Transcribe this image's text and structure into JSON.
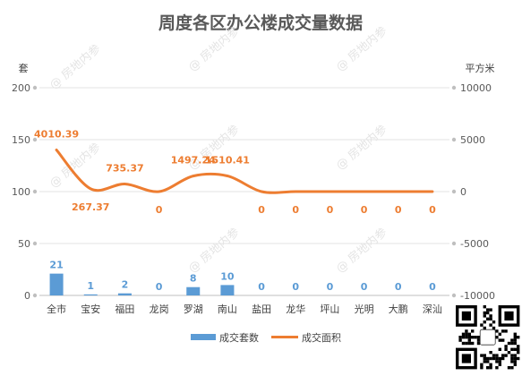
{
  "chart_data": {
    "type": "bar",
    "title": "周度各区办公楼成交量数据",
    "categories": [
      "全市",
      "宝安",
      "福田",
      "龙岗",
      "罗湖",
      "南山",
      "盐田",
      "龙华",
      "坪山",
      "光明",
      "大鹏",
      "深汕"
    ],
    "left_axis": {
      "unit": "套",
      "ylim": [
        0,
        200
      ],
      "ticks": [
        0,
        50,
        100,
        150,
        200
      ]
    },
    "right_axis": {
      "unit": "平方米",
      "ylim": [
        -10000,
        10000
      ],
      "ticks": [
        -10000,
        -5000,
        0,
        5000,
        10000
      ]
    },
    "series": [
      {
        "name": "成交套数",
        "type": "bar",
        "axis": "left",
        "color": "#5b9bd5",
        "values": [
          21,
          1,
          2,
          0,
          8,
          10,
          0,
          0,
          0,
          0,
          0,
          0
        ],
        "labels": [
          "21",
          "1",
          "2",
          "0",
          "8",
          "10",
          "0",
          "0",
          "0",
          "0",
          "0",
          "0"
        ]
      },
      {
        "name": "成交面积",
        "type": "line",
        "axis": "right",
        "color": "#ed7d31",
        "values": [
          4010.39,
          267.37,
          735.37,
          0,
          1497.24,
          1510.41,
          0,
          0,
          0,
          0,
          0,
          0
        ],
        "labels": [
          "4010.39",
          "267.37",
          "735.37",
          "0",
          "1497.24",
          "1510.41",
          "0",
          "0",
          "0",
          "0",
          "0",
          "0"
        ]
      }
    ],
    "grid": true,
    "legend": "bottom"
  },
  "watermark": "@ 房地内参"
}
